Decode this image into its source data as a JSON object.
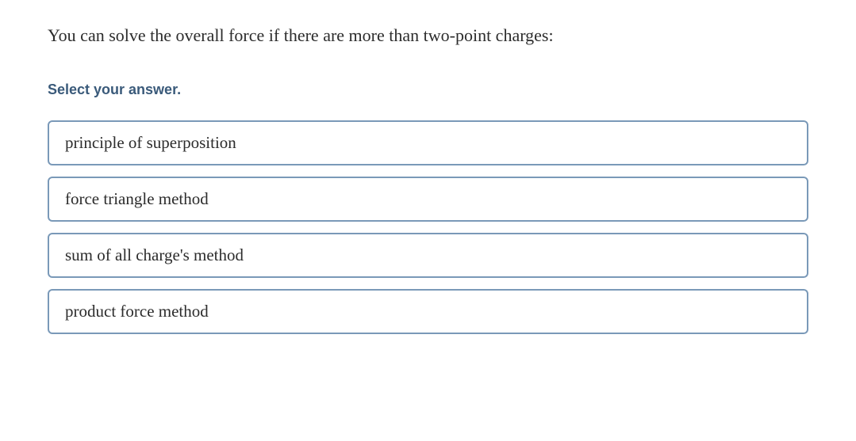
{
  "question": {
    "text": "You can solve the overall force if there are more than two-point charges:",
    "instruction": "Select your answer.",
    "options": [
      "principle of superposition",
      "force triangle method",
      "sum of all charge's method",
      "product force method"
    ]
  },
  "styling": {
    "type": "multiple-choice-quiz",
    "background_color": "#ffffff",
    "question_text_color": "#2c2c2c",
    "instruction_text_color": "#3a5a7a",
    "option_border_color": "#7a99b8",
    "option_border_radius": 6,
    "option_text_color": "#2c2c2c",
    "question_fontsize": 22,
    "instruction_fontsize": 18,
    "option_fontsize": 21,
    "option_gap": 14,
    "option_padding": "14px 20px"
  }
}
